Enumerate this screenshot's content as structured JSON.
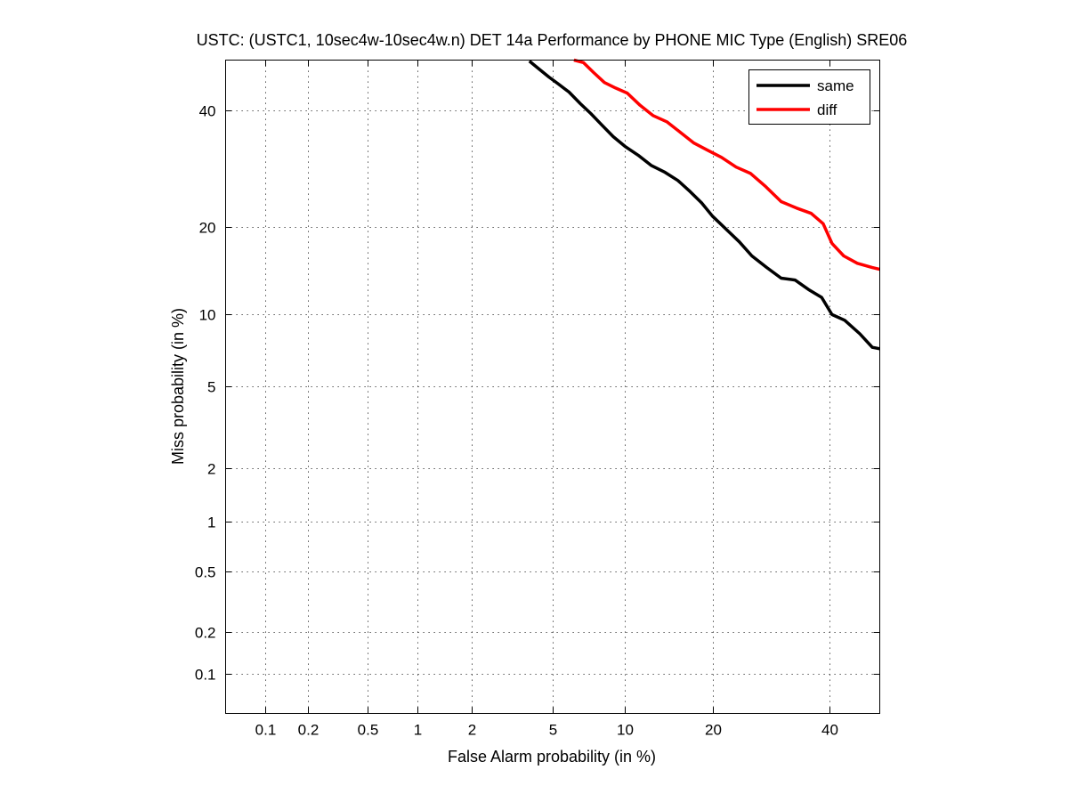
{
  "chart_data": {
    "type": "line",
    "title": "USTC: (USTC1, 10sec4w-10sec4w.n) DET 14a Performance by PHONE MIC Type (English) SRE06",
    "xlabel": "False Alarm probability (in %)",
    "ylabel": "Miss probability (in %)",
    "x_scale": "probit",
    "y_scale": "probit",
    "xlim": [
      0.05,
      50
    ],
    "ylim": [
      0.05,
      50
    ],
    "x_ticks": [
      0.1,
      0.2,
      0.5,
      1,
      2,
      5,
      10,
      20,
      40
    ],
    "x_tick_labels": [
      "0.1",
      "0.2",
      "0.5",
      "1",
      "2",
      "5",
      "10",
      "20",
      "40"
    ],
    "y_ticks": [
      0.1,
      0.2,
      0.5,
      1,
      2,
      5,
      10,
      20,
      40
    ],
    "y_tick_labels": [
      "0.1",
      "0.2",
      "0.5",
      "1",
      "2",
      "5",
      "10",
      "20",
      "40"
    ],
    "grid": true,
    "legend_position": "top-right",
    "series": [
      {
        "name": "same",
        "color": "#000000",
        "x": [
          3.9,
          4.3,
          4.8,
          5.3,
          5.9,
          6.6,
          7.3,
          8.1,
          9.0,
          10.0,
          11.2,
          12.5,
          14.0,
          15.5,
          17.0,
          18.5,
          20.0,
          22.0,
          24.0,
          26.0,
          28.5,
          31.0,
          33.5,
          36.0,
          38.5,
          40.5,
          43.0,
          46.0,
          48.5,
          50.0
        ],
        "y": [
          49.8,
          48.3,
          46.6,
          45.2,
          43.6,
          41.3,
          39.4,
          37.2,
          35.0,
          33.2,
          31.6,
          29.8,
          28.6,
          27.2,
          25.4,
          23.6,
          21.6,
          19.7,
          18.0,
          16.2,
          14.8,
          13.6,
          13.4,
          12.4,
          11.6,
          10.0,
          9.5,
          8.4,
          7.4,
          7.3
        ]
      },
      {
        "name": "diff",
        "color": "#ff0000",
        "x": [
          6.2,
          6.8,
          7.5,
          8.3,
          9.2,
          10.2,
          11.4,
          12.7,
          14.2,
          15.8,
          17.5,
          19.3,
          21.3,
          23.5,
          25.8,
          28.3,
          31.0,
          33.8,
          36.5,
          38.8,
          40.5,
          42.8,
          45.5,
          48.5,
          50.0
        ],
        "y": [
          50.0,
          49.5,
          47.5,
          45.5,
          44.4,
          43.4,
          41.0,
          39.0,
          37.8,
          35.8,
          33.8,
          32.5,
          31.2,
          29.5,
          28.4,
          26.2,
          23.8,
          22.8,
          22.0,
          20.5,
          17.8,
          16.2,
          15.3,
          14.8,
          14.6
        ]
      }
    ]
  }
}
